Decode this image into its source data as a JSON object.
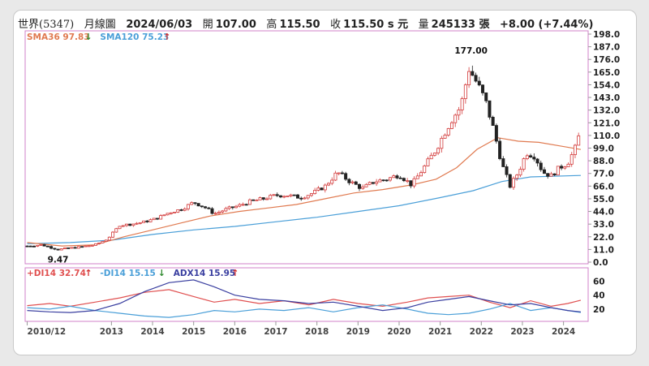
{
  "header": {
    "name": "世界(5347)",
    "period": "月線圖",
    "date": "2024/06/03",
    "open_label": "開",
    "open": "107.00",
    "high_label": "高",
    "high": "115.50",
    "close_label": "收",
    "close": "115.50 s 元",
    "volume_label": "量",
    "volume": "245133 張",
    "change": "+8.00 (+7.44%)"
  },
  "chart_data": [
    {
      "type": "candlestick",
      "title": "",
      "legend": [
        {
          "label": "SMA36 97.83",
          "arrow": "↓",
          "color": "#e07a50",
          "arrow_color": "#2f8a2f"
        },
        {
          "label": "SMA120 75.23",
          "arrow": "↑",
          "color": "#4a9fd8",
          "arrow_color": "#d33030"
        }
      ],
      "ylim": [
        0,
        198
      ],
      "yticks": [
        "198.0",
        "187.0",
        "176.0",
        "165.0",
        "154.0",
        "143.0",
        "132.0",
        "121.0",
        "110.0",
        "99.0",
        "88.0",
        "77.0",
        "66.0",
        "55.0",
        "44.0",
        "33.0",
        "22.0",
        "11.0",
        "0.0"
      ],
      "xticks": [
        "2010/12",
        "2013",
        "2014",
        "2015",
        "2016",
        "2017",
        "2018",
        "2019",
        "2020",
        "2021",
        "2022",
        "2023",
        "2024"
      ],
      "annotations": [
        {
          "label": "177.00",
          "x": 2021.75,
          "y": 177
        },
        {
          "label": "9.47",
          "x": 2011.7,
          "y": 9.47
        }
      ],
      "close_series": [
        [
          2010.95,
          14
        ],
        [
          2011.3,
          15
        ],
        [
          2011.7,
          11
        ],
        [
          2012.2,
          13
        ],
        [
          2012.6,
          15
        ],
        [
          2012.9,
          20
        ],
        [
          2013.2,
          32
        ],
        [
          2013.5,
          33
        ],
        [
          2013.8,
          35
        ],
        [
          2014.1,
          38
        ],
        [
          2014.4,
          43
        ],
        [
          2014.7,
          46
        ],
        [
          2015.0,
          52
        ],
        [
          2015.3,
          47
        ],
        [
          2015.5,
          42
        ],
        [
          2015.8,
          46
        ],
        [
          2016.1,
          49
        ],
        [
          2016.4,
          53
        ],
        [
          2016.7,
          55
        ],
        [
          2017.0,
          58
        ],
        [
          2017.3,
          58
        ],
        [
          2017.6,
          56
        ],
        [
          2017.9,
          60
        ],
        [
          2018.2,
          66
        ],
        [
          2018.5,
          78
        ],
        [
          2018.8,
          70
        ],
        [
          2019.1,
          64
        ],
        [
          2019.4,
          70
        ],
        [
          2019.7,
          72
        ],
        [
          2020.0,
          76
        ],
        [
          2020.3,
          67
        ],
        [
          2020.6,
          82
        ],
        [
          2020.9,
          98
        ],
        [
          2021.1,
          112
        ],
        [
          2021.3,
          125
        ],
        [
          2021.5,
          135
        ],
        [
          2021.7,
          168
        ],
        [
          2021.9,
          155
        ],
        [
          2022.1,
          140
        ],
        [
          2022.3,
          115
        ],
        [
          2022.5,
          85
        ],
        [
          2022.7,
          66
        ],
        [
          2022.9,
          78
        ],
        [
          2023.1,
          95
        ],
        [
          2023.3,
          92
        ],
        [
          2023.5,
          78
        ],
        [
          2023.7,
          75
        ],
        [
          2023.9,
          82
        ],
        [
          2024.1,
          86
        ],
        [
          2024.3,
          100
        ],
        [
          2024.42,
          115.5
        ]
      ],
      "sma36": [
        [
          2010.95,
          17
        ],
        [
          2011.8,
          14
        ],
        [
          2012.6,
          15
        ],
        [
          2013.3,
          22
        ],
        [
          2014.0,
          28
        ],
        [
          2014.7,
          34
        ],
        [
          2015.4,
          40
        ],
        [
          2016.1,
          44
        ],
        [
          2016.8,
          47
        ],
        [
          2017.5,
          50
        ],
        [
          2018.2,
          55
        ],
        [
          2018.9,
          60
        ],
        [
          2019.6,
          63
        ],
        [
          2020.3,
          67
        ],
        [
          2020.9,
          72
        ],
        [
          2021.4,
          82
        ],
        [
          2021.9,
          98
        ],
        [
          2022.4,
          108
        ],
        [
          2022.9,
          105
        ],
        [
          2023.4,
          104
        ],
        [
          2023.9,
          101
        ],
        [
          2024.42,
          97.83
        ]
      ],
      "sma120": [
        [
          2010.95,
          16
        ],
        [
          2012.0,
          17
        ],
        [
          2013.0,
          19
        ],
        [
          2014.0,
          24
        ],
        [
          2015.0,
          28
        ],
        [
          2016.0,
          31
        ],
        [
          2017.0,
          35
        ],
        [
          2018.0,
          39
        ],
        [
          2019.0,
          44
        ],
        [
          2020.0,
          49
        ],
        [
          2021.0,
          56
        ],
        [
          2021.8,
          62
        ],
        [
          2022.5,
          70
        ],
        [
          2023.2,
          74
        ],
        [
          2024.42,
          75.23
        ]
      ]
    },
    {
      "type": "line",
      "title": "",
      "legend": [
        {
          "label": "+DI14 32.74",
          "arrow": "↑",
          "color": "#e05050",
          "arrow_color": "#d33030"
        },
        {
          "label": "-DI14 15.15",
          "arrow": "↓",
          "color": "#4a9fd8",
          "arrow_color": "#2f8a2f"
        },
        {
          "label": "ADX14 15.95",
          "arrow": "↑",
          "color": "#3a3fa0",
          "arrow_color": "#d33030"
        }
      ],
      "ylim": [
        0,
        70
      ],
      "yticks": [
        "60",
        "40",
        "20"
      ],
      "series": [
        {
          "name": "+DI14",
          "color": "#e05050",
          "points": [
            [
              2010.95,
              25
            ],
            [
              2011.5,
              28
            ],
            [
              2012.0,
              24
            ],
            [
              2012.6,
              30
            ],
            [
              2013.2,
              36
            ],
            [
              2013.8,
              44
            ],
            [
              2014.4,
              48
            ],
            [
              2015.0,
              38
            ],
            [
              2015.5,
              30
            ],
            [
              2016.0,
              34
            ],
            [
              2016.6,
              28
            ],
            [
              2017.2,
              32
            ],
            [
              2017.8,
              26
            ],
            [
              2018.4,
              34
            ],
            [
              2019.0,
              28
            ],
            [
              2019.6,
              24
            ],
            [
              2020.2,
              30
            ],
            [
              2020.7,
              36
            ],
            [
              2021.2,
              38
            ],
            [
              2021.7,
              40
            ],
            [
              2022.2,
              30
            ],
            [
              2022.7,
              22
            ],
            [
              2023.2,
              32
            ],
            [
              2023.7,
              24
            ],
            [
              2024.1,
              28
            ],
            [
              2024.42,
              32.74
            ]
          ]
        },
        {
          "name": "-DI14",
          "color": "#4a9fd8",
          "points": [
            [
              2010.95,
              22
            ],
            [
              2011.5,
              20
            ],
            [
              2012.0,
              24
            ],
            [
              2012.6,
              18
            ],
            [
              2013.2,
              14
            ],
            [
              2013.8,
              10
            ],
            [
              2014.4,
              8
            ],
            [
              2015.0,
              12
            ],
            [
              2015.5,
              18
            ],
            [
              2016.0,
              16
            ],
            [
              2016.6,
              20
            ],
            [
              2017.2,
              18
            ],
            [
              2017.8,
              22
            ],
            [
              2018.4,
              16
            ],
            [
              2019.0,
              22
            ],
            [
              2019.6,
              26
            ],
            [
              2020.2,
              20
            ],
            [
              2020.7,
              14
            ],
            [
              2021.2,
              12
            ],
            [
              2021.7,
              14
            ],
            [
              2022.2,
              20
            ],
            [
              2022.7,
              28
            ],
            [
              2023.2,
              18
            ],
            [
              2023.7,
              22
            ],
            [
              2024.1,
              18
            ],
            [
              2024.42,
              15.15
            ]
          ]
        },
        {
          "name": "ADX14",
          "color": "#3a3fa0",
          "points": [
            [
              2010.95,
              18
            ],
            [
              2011.5,
              16
            ],
            [
              2012.0,
              15
            ],
            [
              2012.6,
              18
            ],
            [
              2013.2,
              28
            ],
            [
              2013.8,
              45
            ],
            [
              2014.4,
              58
            ],
            [
              2015.0,
              62
            ],
            [
              2015.5,
              52
            ],
            [
              2016.0,
              40
            ],
            [
              2016.6,
              34
            ],
            [
              2017.2,
              32
            ],
            [
              2017.8,
              28
            ],
            [
              2018.4,
              30
            ],
            [
              2019.0,
              24
            ],
            [
              2019.6,
              18
            ],
            [
              2020.2,
              22
            ],
            [
              2020.7,
              30
            ],
            [
              2021.2,
              34
            ],
            [
              2021.7,
              38
            ],
            [
              2022.2,
              32
            ],
            [
              2022.7,
              26
            ],
            [
              2023.2,
              28
            ],
            [
              2023.7,
              22
            ],
            [
              2024.1,
              18
            ],
            [
              2024.42,
              15.95
            ]
          ]
        }
      ]
    }
  ]
}
